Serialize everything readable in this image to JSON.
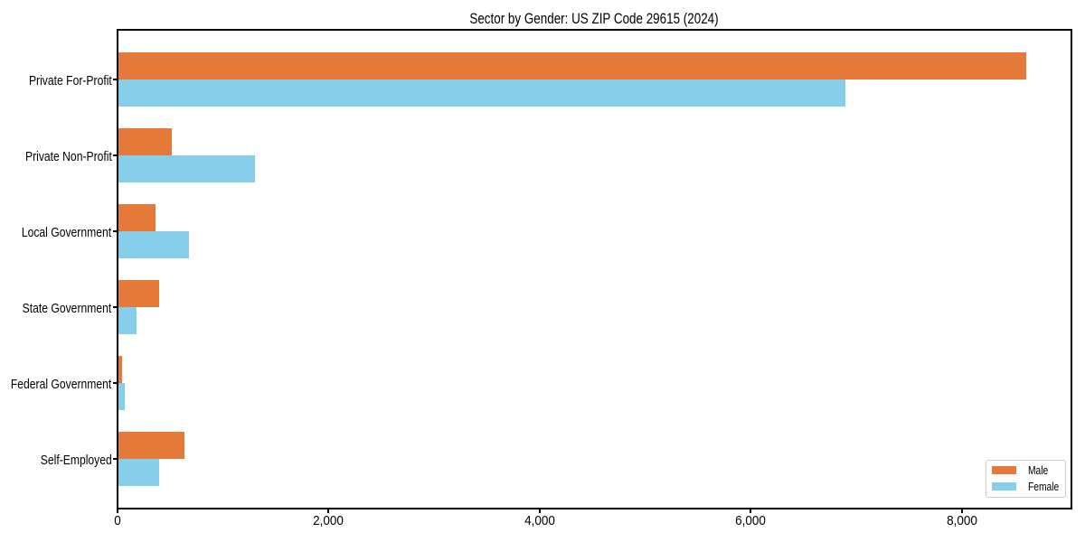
{
  "chart_data": {
    "type": "bar",
    "orientation": "horizontal",
    "title": "Sector by Gender: US ZIP Code 29615 (2024)",
    "categories": [
      "Private For-Profit",
      "Private Non-Profit",
      "Local Government",
      "State Government",
      "Federal Government",
      "Self-Employed"
    ],
    "series": [
      {
        "name": "Male",
        "color": "#E5793A",
        "values": [
          8615,
          520,
          360,
          395,
          50,
          635
        ]
      },
      {
        "name": "Female",
        "color": "#87CEEB",
        "values": [
          6900,
          1305,
          685,
          185,
          70,
          395
        ]
      }
    ],
    "xlabel": "",
    "ylabel": "",
    "xlim": [
      0,
      9040
    ],
    "xticks": {
      "values": [
        0,
        2000,
        4000,
        6000,
        8000
      ],
      "labels": [
        "0",
        "2,000",
        "4,000",
        "6,000",
        "8,000"
      ]
    },
    "grid": false,
    "legend_position": "lower right"
  }
}
